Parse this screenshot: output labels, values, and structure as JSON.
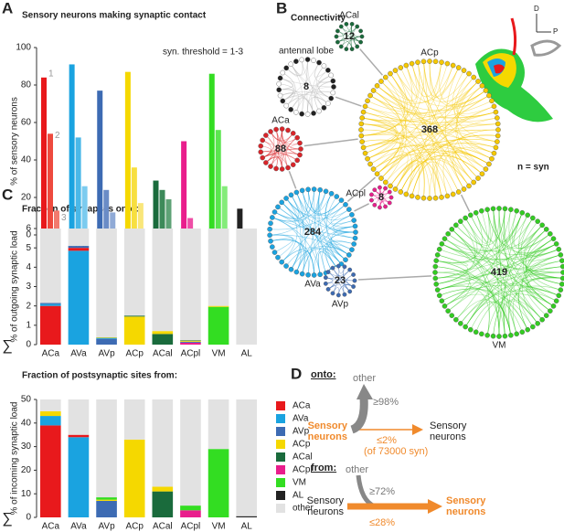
{
  "panels": {
    "a": "A",
    "b": "B",
    "c": "C",
    "d": "D"
  },
  "chart_data": [
    {
      "type": "bar",
      "title": "Sensory neurons making synaptic contact",
      "annotation": "syn. threshold =  1-3",
      "ylabel": "% of sensory neurons",
      "categories": [
        "ACa",
        "AVa",
        "AVp",
        "ACp",
        "ACal",
        "ACpl",
        "VM",
        "AL"
      ],
      "series": [
        {
          "name": "1",
          "colors": [
            "#e8191c",
            "#1aa3e0",
            "#3d6bb3",
            "#f5d800",
            "#1a6b3c",
            "#e91e8c",
            "#33dd22",
            "#222222"
          ],
          "values": [
            84,
            91,
            77,
            87,
            29,
            50,
            86,
            14
          ]
        },
        {
          "name": "2",
          "colors": [
            "#ee4a3e",
            "#4ab8e8",
            "#6a8cc6",
            "#f7df40",
            "#3d8a5a",
            "#ee4ea6",
            "#5ce650",
            "#888888"
          ],
          "values": [
            54,
            52,
            24,
            36,
            24,
            9,
            56,
            0
          ]
        },
        {
          "name": "3",
          "colors": [
            "#f27a6e",
            "#7ccbef",
            "#90aad6",
            "#f9e67a",
            "#5ea276",
            "#f27fbf",
            "#84ec7a",
            "#aaaaaa"
          ],
          "values": [
            13,
            26,
            12,
            17,
            19,
            0,
            26,
            0
          ]
        }
      ],
      "ylim": [
        0,
        100
      ],
      "yticks": [
        0,
        20,
        40,
        60,
        80,
        100
      ]
    },
    {
      "type": "stacked-bar",
      "title": "Fraction of synapses onto:",
      "ylabel": "% of outgoing synaptic load",
      "sum_symbol": "∑",
      "categories": [
        "ACa",
        "AVa",
        "AVp",
        "ACp",
        "ACal",
        "ACpl",
        "VM",
        "AL"
      ],
      "series": [
        {
          "name": "ACa",
          "color": "#e8191c",
          "values": [
            2.0,
            0.15,
            0,
            0,
            0,
            0,
            0,
            0
          ]
        },
        {
          "name": "AVa",
          "color": "#1aa3e0",
          "values": [
            0.1,
            4.85,
            0.05,
            0,
            0,
            0,
            0,
            0
          ]
        },
        {
          "name": "AVp",
          "color": "#3d6bb3",
          "values": [
            0.05,
            0.1,
            0.3,
            0,
            0,
            0.05,
            0,
            0
          ]
        },
        {
          "name": "ACp",
          "color": "#f5d800",
          "values": [
            0,
            0,
            0.03,
            1.45,
            0.15,
            0.05,
            0.05,
            0
          ]
        },
        {
          "name": "ACal",
          "color": "#1a6b3c",
          "values": [
            0,
            0,
            0,
            0.05,
            0.55,
            0.03,
            0,
            0
          ]
        },
        {
          "name": "ACpl",
          "color": "#e91e8c",
          "values": [
            0,
            0,
            0,
            0,
            0,
            0.1,
            0,
            0
          ]
        },
        {
          "name": "VM",
          "color": "#33dd22",
          "values": [
            0,
            0,
            0,
            0,
            0,
            0,
            1.95,
            0
          ]
        },
        {
          "name": "AL",
          "color": "#222222",
          "values": [
            0,
            0,
            0,
            0,
            0,
            0,
            0,
            0
          ]
        },
        {
          "name": "other",
          "color": "#e2e2e2",
          "values": [
            3.85,
            0.9,
            5.62,
            4.5,
            5.3,
            5.77,
            4.0,
            6
          ]
        }
      ],
      "ylim": [
        0,
        6
      ],
      "yticks": [
        0,
        1,
        2,
        3,
        4,
        5,
        6
      ]
    },
    {
      "type": "stacked-bar",
      "title": "Fraction of postsynaptic sites from:",
      "ylabel": "% of incoming synaptic load",
      "sum_symbol": "∑",
      "legend": "right",
      "categories": [
        "ACa",
        "AVa",
        "AVp",
        "ACp",
        "ACal",
        "ACpl",
        "VM",
        "AL"
      ],
      "series": [
        {
          "name": "ACa",
          "color": "#e8191c",
          "values": [
            39,
            1,
            0,
            0,
            0,
            0,
            0,
            0
          ]
        },
        {
          "name": "AVa",
          "color": "#1aa3e0",
          "values": [
            4,
            34,
            0,
            0,
            0,
            0,
            0,
            0
          ]
        },
        {
          "name": "AVp",
          "color": "#3d6bb3",
          "values": [
            0,
            0,
            7,
            0,
            0,
            0,
            0,
            0
          ]
        },
        {
          "name": "ACp",
          "color": "#f5d800",
          "values": [
            2,
            0,
            0.5,
            33,
            2,
            0,
            0,
            0
          ]
        },
        {
          "name": "ACal",
          "color": "#1a6b3c",
          "values": [
            0,
            0,
            0,
            0,
            11,
            0,
            0,
            0
          ]
        },
        {
          "name": "ACpl",
          "color": "#e91e8c",
          "values": [
            0,
            0,
            0,
            0,
            0,
            3,
            0,
            0
          ]
        },
        {
          "name": "VM",
          "color": "#33dd22",
          "values": [
            0,
            0,
            1,
            0,
            0,
            2,
            29,
            0
          ]
        },
        {
          "name": "AL",
          "color": "#222222",
          "values": [
            0,
            0,
            0,
            0,
            0,
            0,
            0,
            0.5
          ]
        },
        {
          "name": "other",
          "color": "#e2e2e2",
          "values": [
            5,
            15,
            41.5,
            17,
            37,
            45,
            21,
            49.5
          ]
        }
      ],
      "ylim": [
        0,
        50
      ],
      "yticks": [
        0,
        10,
        20,
        30,
        40,
        50
      ]
    }
  ],
  "network": {
    "title": "Connectivity",
    "note": "n = syn",
    "axis_d": "D",
    "axis_p": "P",
    "nodes": [
      {
        "label": "antennal lobe",
        "value": "8",
        "color": "#222222"
      },
      {
        "label": "ACal",
        "value": "12",
        "color": "#1a6b3c"
      },
      {
        "label": "ACp",
        "value": "368",
        "color": "#f5c800"
      },
      {
        "label": "ACa",
        "value": "88",
        "color": "#d9252a"
      },
      {
        "label": "AVa",
        "value": "284",
        "color": "#1aa3e0"
      },
      {
        "label": "AVp",
        "value": "23",
        "color": "#3d6bb3"
      },
      {
        "label": "ACpl",
        "value": "8",
        "color": "#e91e8c"
      },
      {
        "label": "VM",
        "value": "419",
        "color": "#33cc22"
      }
    ]
  },
  "summary": {
    "onto": {
      "heading": "onto:",
      "other": "other",
      "other_pct": "≥98%",
      "source": "Sensory neurons",
      "target": "Sensory neurons",
      "target_pct": "≤2%",
      "note": "(of 73000 syn)"
    },
    "from": {
      "heading": "from:",
      "other": "other",
      "other_pct": "≥72%",
      "source": "Sensory neurons",
      "target": "Sensory neurons",
      "target_pct": "≤28%"
    }
  }
}
